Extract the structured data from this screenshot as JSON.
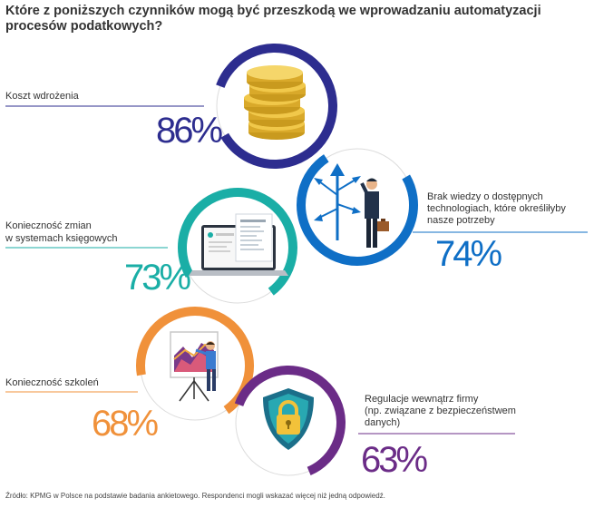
{
  "chart_data": {
    "type": "infographic-donut",
    "title": "Które z poniższych czynników mogą być przeszkodą we wprowadzaniu automatyzacji procesów podatkowych?",
    "unit": "%",
    "items": [
      {
        "label": "Koszt wdrożenia",
        "value": 86,
        "color": "#2d2d8f",
        "icon": "coins-icon"
      },
      {
        "label": "Brak wiedzy o dostępnych technologiach, które określiłyby nasze potrzeby",
        "value": 74,
        "color": "#0f6fc6",
        "icon": "confused-man-arrows-icon"
      },
      {
        "label": "Konieczność zmian w systemach księgowych",
        "value": 73,
        "color": "#1aaea6",
        "icon": "laptop-document-icon"
      },
      {
        "label": "Konieczność szkoleń",
        "value": 68,
        "color": "#f0913a",
        "icon": "presentation-board-icon"
      },
      {
        "label": "Regulacje wewnątrz firmy (np. związane z bezpieczeństwem danych)",
        "value": 63,
        "color": "#6b2c87",
        "icon": "security-shield-lock-icon"
      }
    ],
    "source": "Źródło: KPMG w Polsce na podstawie badania ankietowego. Respondenci mogli wskazać więcej niż jedną odpowiedź."
  },
  "labels": {
    "item0": "Koszt wdrożenia",
    "item1_l1": "Brak wiedzy o dostępnych",
    "item1_l2": "technologiach, które określiłyby",
    "item1_l3": "nasze potrzeby",
    "item2_l1": "Konieczność zmian",
    "item2_l2": "w systemach księgowych",
    "item3": "Konieczność szkoleń",
    "item4_l1": "Regulacje wewnątrz firmy",
    "item4_l2": "(np. związane z bezpieczeństwem",
    "item4_l3": "danych)"
  },
  "pct_text": [
    "86%",
    "74%",
    "73%",
    "68%",
    "63%"
  ]
}
